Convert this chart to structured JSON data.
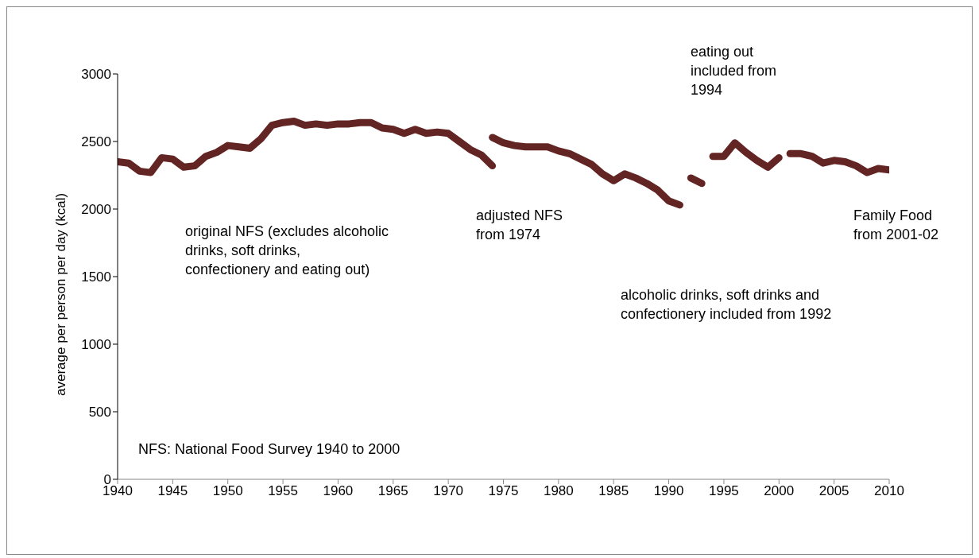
{
  "chart_data": {
    "type": "line",
    "ylabel": "average per person per day  (kcal)",
    "xlim": [
      1940,
      2010
    ],
    "xticks": [
      1940,
      1945,
      1950,
      1955,
      1960,
      1965,
      1970,
      1975,
      1980,
      1985,
      1990,
      1995,
      2000,
      2005,
      2010
    ],
    "ylim": [
      0,
      3000
    ],
    "yticks": [
      0,
      500,
      1000,
      1500,
      2000,
      2500,
      3000
    ],
    "grid": false,
    "marker": "none",
    "line_style": "solid",
    "series": [
      {
        "color": "#632523",
        "x": [
          1940,
          1941,
          1942,
          1943,
          1944,
          1945,
          1946,
          1947,
          1948,
          1949,
          1950,
          1951,
          1952,
          1953,
          1954,
          1955,
          1956,
          1957,
          1958,
          1959,
          1960,
          1961,
          1962,
          1963,
          1964,
          1965,
          1966,
          1967,
          1968,
          1969,
          1970,
          1971,
          1972,
          1973,
          1974
        ],
        "values": [
          2350,
          2340,
          2280,
          2270,
          2380,
          2370,
          2310,
          2320,
          2390,
          2420,
          2470,
          2460,
          2450,
          2520,
          2620,
          2640,
          2650,
          2620,
          2630,
          2620,
          2630,
          2630,
          2640,
          2640,
          2600,
          2590,
          2560,
          2590,
          2560,
          2570,
          2560,
          2500,
          2440,
          2400,
          2320
        ]
      },
      {
        "color": "#632523",
        "x": [
          1974,
          1975,
          1976,
          1977,
          1978,
          1979,
          1980,
          1981,
          1982,
          1983,
          1984,
          1985,
          1986,
          1987,
          1988,
          1989,
          1990,
          1991
        ],
        "values": [
          2530,
          2490,
          2470,
          2460,
          2460,
          2460,
          2430,
          2410,
          2370,
          2330,
          2260,
          2210,
          2260,
          2230,
          2190,
          2140,
          2060,
          2030
        ]
      },
      {
        "color": "#632523",
        "x": [
          1992,
          1993
        ],
        "values": [
          2230,
          2190
        ]
      },
      {
        "color": "#632523",
        "x": [
          1994,
          1995,
          1996,
          1997,
          1998,
          1999,
          2000
        ],
        "values": [
          2390,
          2390,
          2490,
          2420,
          2360,
          2310,
          2380
        ]
      },
      {
        "color": "#632523",
        "x": [
          2001,
          2002,
          2003,
          2004,
          2005,
          2006,
          2007,
          2008,
          2009,
          2010
        ],
        "values": [
          2410,
          2410,
          2390,
          2340,
          2360,
          2350,
          2320,
          2270,
          2300,
          2290
        ]
      }
    ],
    "annotations": [
      "original NFS (excludes alcoholic\ndrinks, soft drinks,\nconfectionery and eating out)",
      "adjusted NFS\nfrom 1974",
      "alcoholic drinks, soft drinks and\nconfectionery included from 1992",
      "eating out\nincluded from\n1994",
      "Family Food\nfrom 2001-02",
      "NFS: National Food Survey 1940 to 2000"
    ]
  }
}
